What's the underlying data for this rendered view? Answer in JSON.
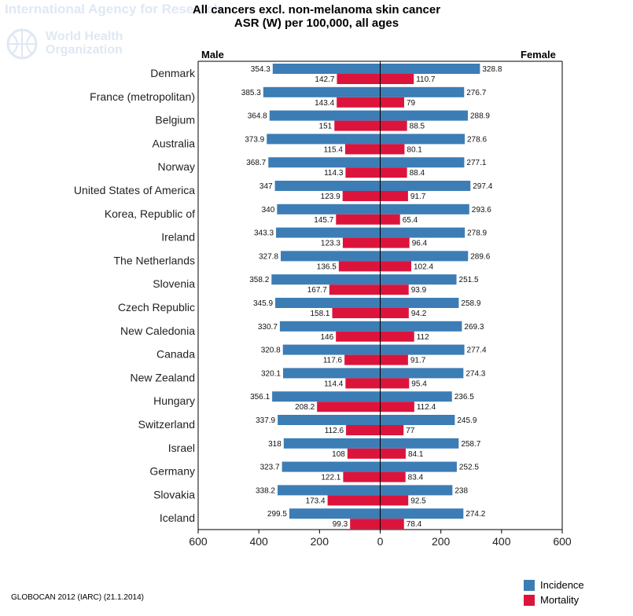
{
  "watermark": {
    "agency": "International Agency for Research",
    "org_line1": "World Health",
    "org_line2": "Organization"
  },
  "header": {
    "title_line1": "All cancers excl. non-melanoma skin cancer",
    "title_line2": "ASR (W) per 100,000, all ages",
    "male_label": "Male",
    "female_label": "Female"
  },
  "footer": {
    "source": "GLOBOCAN 2012 (IARC) (21.1.2014)"
  },
  "colors": {
    "incidence": "#3c7db5",
    "mortality": "#dc143c"
  },
  "chart_data": {
    "type": "bar",
    "orientation": "horizontal",
    "title": "All cancers excl. non-melanoma skin cancer",
    "subtitle": "ASR (W) per 100,000, all ages",
    "xlim": [
      -600,
      600
    ],
    "x_ticks": [
      -600,
      -400,
      -200,
      0,
      200,
      400,
      600
    ],
    "x_tick_labels": [
      "600",
      "400",
      "200",
      "0",
      "200",
      "400",
      "600"
    ],
    "left_label": "Male",
    "right_label": "Female",
    "legend": {
      "position": "bottom-right",
      "entries": [
        "Incidence",
        "Mortality"
      ]
    },
    "categories": [
      "Denmark",
      "France (metropolitan)",
      "Belgium",
      "Australia",
      "Norway",
      "United States of America",
      "Korea, Republic of",
      "Ireland",
      "The Netherlands",
      "Slovenia",
      "Czech Republic",
      "New Caledonia",
      "Canada",
      "New Zealand",
      "Hungary",
      "Switzerland",
      "Israel",
      "Germany",
      "Slovakia",
      "Iceland"
    ],
    "series": [
      {
        "name": "Incidence",
        "sex": "Male",
        "values": [
          354.3,
          385.3,
          364.8,
          373.9,
          368.7,
          347,
          340,
          343.3,
          327.8,
          358.2,
          345.9,
          330.7,
          320.8,
          320.1,
          356.1,
          337.9,
          318,
          323.7,
          338.2,
          299.5
        ]
      },
      {
        "name": "Mortality",
        "sex": "Male",
        "values": [
          142.7,
          143.4,
          151,
          115.4,
          114.3,
          123.9,
          145.7,
          123.3,
          136.5,
          167.7,
          158.1,
          146,
          117.6,
          114.4,
          208.2,
          112.6,
          108,
          122.1,
          173.4,
          99.3
        ]
      },
      {
        "name": "Incidence",
        "sex": "Female",
        "values": [
          328.8,
          276.7,
          288.9,
          278.6,
          277.1,
          297.4,
          293.6,
          278.9,
          289.6,
          251.5,
          258.9,
          269.3,
          277.4,
          274.3,
          236.5,
          245.9,
          258.7,
          252.5,
          238,
          274.2
        ]
      },
      {
        "name": "Mortality",
        "sex": "Female",
        "values": [
          110.7,
          79,
          88.5,
          80.1,
          88.4,
          91.7,
          65.4,
          96.4,
          102.4,
          93.9,
          94.2,
          112,
          91.7,
          95.4,
          112.4,
          77,
          84.1,
          83.4,
          92.5,
          78.4
        ]
      }
    ]
  }
}
